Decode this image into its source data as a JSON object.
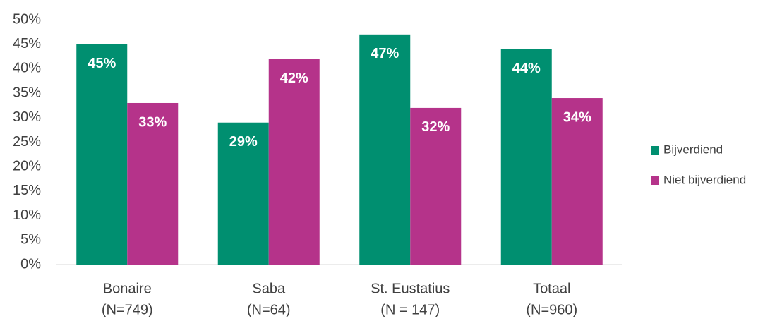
{
  "chart_data": {
    "type": "bar",
    "categories": [
      [
        "Bonaire",
        "(N=749)"
      ],
      [
        "Saba",
        "(N=64)"
      ],
      [
        "St. Eustatius",
        "(N = 147)"
      ],
      [
        "Totaal",
        "(N=960)"
      ]
    ],
    "series": [
      {
        "name": "Bijverdiend",
        "color": "#008f70",
        "values": [
          45,
          29,
          47,
          44
        ],
        "value_labels": [
          "45%",
          "29%",
          "47%",
          "44%"
        ]
      },
      {
        "name": "Niet bijverdiend",
        "color": "#b5338a",
        "values": [
          33,
          42,
          32,
          34
        ],
        "value_labels": [
          "33%",
          "42%",
          "32%",
          "34%"
        ]
      }
    ],
    "ylim": [
      0,
      50
    ],
    "yticks": [
      {
        "value": 0,
        "label": "0%"
      },
      {
        "value": 5,
        "label": "5%"
      },
      {
        "value": 10,
        "label": "10%"
      },
      {
        "value": 15,
        "label": "15%"
      },
      {
        "value": 20,
        "label": "20%"
      },
      {
        "value": 25,
        "label": "25%"
      },
      {
        "value": 30,
        "label": "30%"
      },
      {
        "value": 35,
        "label": "35%"
      },
      {
        "value": 40,
        "label": "40%"
      },
      {
        "value": 45,
        "label": "45%"
      },
      {
        "value": 50,
        "label": "50%"
      }
    ],
    "grid": false,
    "legend": "right"
  }
}
